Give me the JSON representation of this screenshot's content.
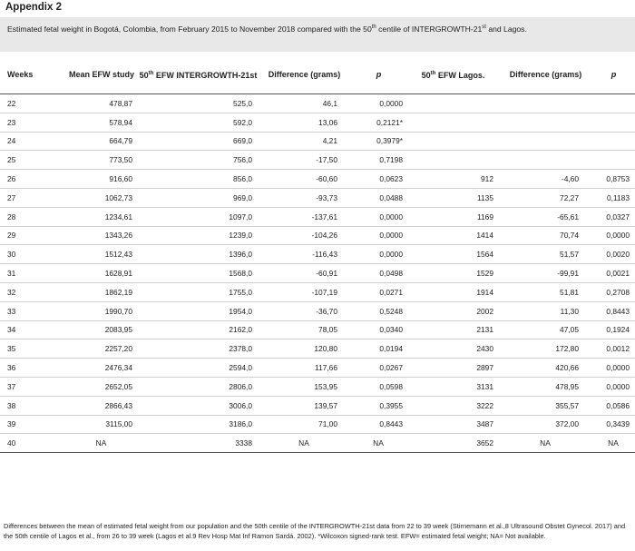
{
  "appendix_title": "Appendix 2",
  "caption": {
    "text_main": "Estimated fetal weight in Bogotá, Colombia, from February 2015 to November 2018 compared with the 50",
    "sup1": "th",
    "text_mid": " centile of INTERGROWTH-21",
    "sup2": "st",
    "text_end": " and Lagos."
  },
  "headers": [
    {
      "main": "Weeks",
      "sup": "",
      "rest": ""
    },
    {
      "main": "Mean EFW study",
      "sup": "",
      "rest": ""
    },
    {
      "main": "50",
      "sup": "th",
      "rest": " EFW INTERGROWTH-21st"
    },
    {
      "main": "Difference (grams)",
      "sup": "",
      "rest": ""
    },
    {
      "main": "p",
      "sup": "",
      "rest": ""
    },
    {
      "main": "50",
      "sup": "th",
      "rest": " EFW Lagos."
    },
    {
      "main": "Difference (grams)",
      "sup": "",
      "rest": ""
    },
    {
      "main": "p",
      "sup": "",
      "rest": ""
    }
  ],
  "rows": [
    [
      "22",
      "478,87",
      "525,0",
      "46,1",
      "0,0000",
      "",
      "",
      ""
    ],
    [
      "23",
      "578,94",
      "592,0",
      "13,06",
      "0,2121*",
      "",
      "",
      ""
    ],
    [
      "24",
      "664,79",
      "669,0",
      "4,21",
      "0,3979*",
      "",
      "",
      ""
    ],
    [
      "25",
      "773,50",
      "756,0",
      "-17,50",
      "0,7198",
      "",
      "",
      ""
    ],
    [
      "26",
      "916,60",
      "856,0",
      "-60,60",
      "0,0623",
      "912",
      "-4,60",
      "0,8753"
    ],
    [
      "27",
      "1062,73",
      "969,0",
      "-93,73",
      "0,0488",
      "1135",
      "72,27",
      "0,1183"
    ],
    [
      "28",
      "1234,61",
      "1097,0",
      "-137,61",
      "0,0000",
      "1169",
      "-65,61",
      "0,0327"
    ],
    [
      "29",
      "1343,26",
      "1239,0",
      "-104,26",
      "0,0000",
      "1414",
      "70,74",
      "0,0000"
    ],
    [
      "30",
      "1512,43",
      "1396,0",
      "-116,43",
      "0,0000",
      "1564",
      "51,57",
      "0,0020"
    ],
    [
      "31",
      "1628,91",
      "1568,0",
      "-60,91",
      "0,0498",
      "1529",
      "-99,91",
      "0,0021"
    ],
    [
      "32",
      "1862,19",
      "1755,0",
      "-107,19",
      "0,0271",
      "1914",
      "51,81",
      "0,2708"
    ],
    [
      "33",
      "1990,70",
      "1954,0",
      "-36,70",
      "0,5248",
      "2002",
      "11,30",
      "0,8443"
    ],
    [
      "34",
      "2083,95",
      "2162,0",
      "78,05",
      "0,0340",
      "2131",
      "47,05",
      "0,1924"
    ],
    [
      "35",
      "2257,20",
      "2378,0",
      "120,80",
      "0,0194",
      "2430",
      "172,80",
      "0,0012"
    ],
    [
      "36",
      "2476,34",
      "2594,0",
      "117,66",
      "0,0267",
      "2897",
      "420,66",
      "0,0000"
    ],
    [
      "37",
      "2652,05",
      "2806,0",
      "153,95",
      "0,0598",
      "3131",
      "478,95",
      "0,0000"
    ],
    [
      "38",
      "2866,43",
      "3006,0",
      "139,57",
      "0,3955",
      "3222",
      "355,57",
      "0,0586"
    ],
    [
      "39",
      "3115,00",
      "3186,0",
      "71,00",
      "0,8443",
      "3487",
      "372,00",
      "0,3439"
    ],
    [
      "40",
      "NA",
      "3338",
      "NA",
      "NA",
      "3652",
      "NA",
      "NA"
    ]
  ],
  "footnote": "Differences between the mean of estimated fetal weight from our population and the 50th centile of the INTERGROWTH-21st data from 22 to 39 week (Stirnemann et al.,8 Ultrasound Obstet Gynecol. 2017) and the 50th centile of Lagos et al., from 26 to 39 week (Lagos et al.9 Rev Hosp Mat Inf Ramon Sardá. 2002). *Wilcoxon signed-rank test. EFW= estimated fetal weight; NA= Not available."
}
